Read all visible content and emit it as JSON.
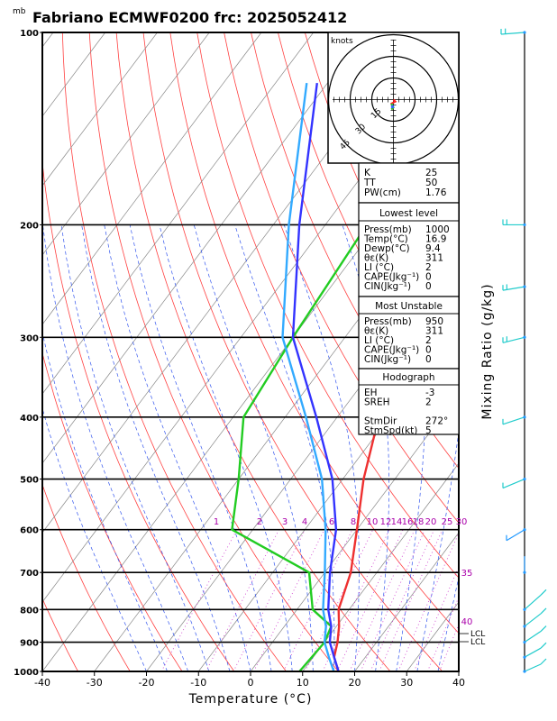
{
  "chart_data": {
    "type": "line",
    "title": "Fabriano ECMWF0200 frc: 2025052412",
    "units_label": "mb",
    "xlabel": "Temperature (°C)",
    "right_label": "Mixing Ratio (g/kg)",
    "xlim": [
      -40,
      40
    ],
    "ylim": [
      1000,
      100
    ],
    "x_ticks": [
      "-40",
      "-30",
      "-20",
      "-10",
      "0",
      "10",
      "20",
      "30",
      "40"
    ],
    "p_levels": [
      100,
      200,
      300,
      400,
      500,
      600,
      700,
      800,
      900,
      1000
    ],
    "p_tick_labels": [
      "100",
      "200",
      "300",
      "400",
      "500",
      "600",
      "700",
      "800",
      "900",
      "1000"
    ],
    "mixing_ratio_labels": [
      "1",
      "2",
      "3",
      "4",
      "6",
      "8",
      "10",
      "12",
      "14",
      "16",
      "18",
      "20",
      "25",
      "30",
      "35",
      "40"
    ],
    "lcl_labels": [
      "LCL",
      "LCL"
    ],
    "series": [
      {
        "role": "temperature",
        "color": "#ee3030",
        "points": [
          [
            16.9,
            1000
          ],
          [
            14,
            950
          ],
          [
            12.5,
            900
          ],
          [
            10.5,
            850
          ],
          [
            8,
            800
          ],
          [
            5,
            700
          ],
          [
            0,
            600
          ],
          [
            -6,
            500
          ],
          [
            -12,
            400
          ],
          [
            -19,
            300
          ],
          [
            -26,
            250
          ],
          [
            -20,
            200
          ],
          [
            -8,
            150
          ],
          [
            4,
            100
          ]
        ]
      },
      {
        "role": "dewpoint",
        "color": "#22cc22",
        "points": [
          [
            9.4,
            1000
          ],
          [
            10,
            900
          ],
          [
            9,
            850
          ],
          [
            3,
            800
          ],
          [
            -3,
            700
          ],
          [
            -24,
            600
          ],
          [
            -30,
            500
          ],
          [
            -38,
            400
          ],
          [
            -40,
            300
          ],
          [
            -42,
            200
          ],
          [
            -44,
            150
          ],
          [
            -47,
            100
          ]
        ]
      },
      {
        "role": "parcel",
        "color": "#3333ff",
        "points": [
          [
            16.9,
            1000
          ],
          [
            14,
            950
          ],
          [
            11,
            900
          ],
          [
            9,
            850
          ],
          [
            6,
            800
          ],
          [
            1,
            700
          ],
          [
            -4,
            600
          ],
          [
            -12,
            500
          ],
          [
            -24,
            400
          ],
          [
            -40,
            300
          ],
          [
            -55,
            200
          ],
          [
            -72,
            120
          ]
        ]
      },
      {
        "role": "parcel2",
        "color": "#33aaff",
        "points": [
          [
            16,
            1000
          ],
          [
            13,
            950
          ],
          [
            10,
            900
          ],
          [
            8,
            850
          ],
          [
            5,
            800
          ],
          [
            0,
            700
          ],
          [
            -6,
            600
          ],
          [
            -14,
            500
          ],
          [
            -26,
            400
          ],
          [
            -42,
            300
          ],
          [
            -57,
            200
          ],
          [
            -74,
            120
          ]
        ]
      }
    ],
    "hodograph": {
      "label": "knots",
      "rings": [
        "15",
        "30",
        "45"
      ],
      "points": [
        [
          0,
          0
        ],
        [
          1,
          -1
        ],
        [
          -1,
          -2
        ],
        [
          0,
          -4
        ],
        [
          -1,
          -5
        ]
      ]
    },
    "wind_barbs": [
      {
        "p": 100
      },
      {
        "p": 200
      },
      {
        "p": 250
      },
      {
        "p": 300
      },
      {
        "p": 400
      },
      {
        "p": 500
      },
      {
        "p": 600
      },
      {
        "p": 700
      },
      {
        "p": 800
      },
      {
        "p": 850
      },
      {
        "p": 900
      },
      {
        "p": 950
      },
      {
        "p": 1000
      }
    ],
    "indices": [
      {
        "k": "K",
        "v": "25"
      },
      {
        "k": "TT",
        "v": "50"
      },
      {
        "k": "PW(cm)",
        "v": "1.76"
      }
    ],
    "lowest_level": {
      "title": "Lowest level",
      "rows": [
        {
          "k": "Press(mb)",
          "v": "1000"
        },
        {
          "k": "Temp(°C)",
          "v": "16.9"
        },
        {
          "k": "Dewp(°C)",
          "v": "9.4"
        },
        {
          "k": "θε(K)",
          "v": "311"
        },
        {
          "k": "LI (°C)",
          "v": "2"
        },
        {
          "k": "CAPE(Jkg⁻¹)",
          "v": "0"
        },
        {
          "k": "CIN(Jkg⁻¹)",
          "v": "0"
        }
      ]
    },
    "most_unstable": {
      "title": "Most Unstable",
      "rows": [
        {
          "k": "Press(mb)",
          "v": "950"
        },
        {
          "k": "θε(K)",
          "v": "311"
        },
        {
          "k": "LI (°C)",
          "v": "2"
        },
        {
          "k": "CAPE(Jkg⁻¹)",
          "v": "0"
        },
        {
          "k": "CIN(Jkg⁻¹)",
          "v": "0"
        }
      ]
    },
    "hodograph_box": {
      "title": "Hodograph",
      "rows": [
        {
          "k": "EH",
          "v": "-3"
        },
        {
          "k": "SREH",
          "v": "2"
        },
        {
          "k": "",
          "v": ""
        },
        {
          "k": "StmDir",
          "v": "272°"
        },
        {
          "k": "StmSpd(kt)",
          "v": "5"
        }
      ]
    }
  }
}
